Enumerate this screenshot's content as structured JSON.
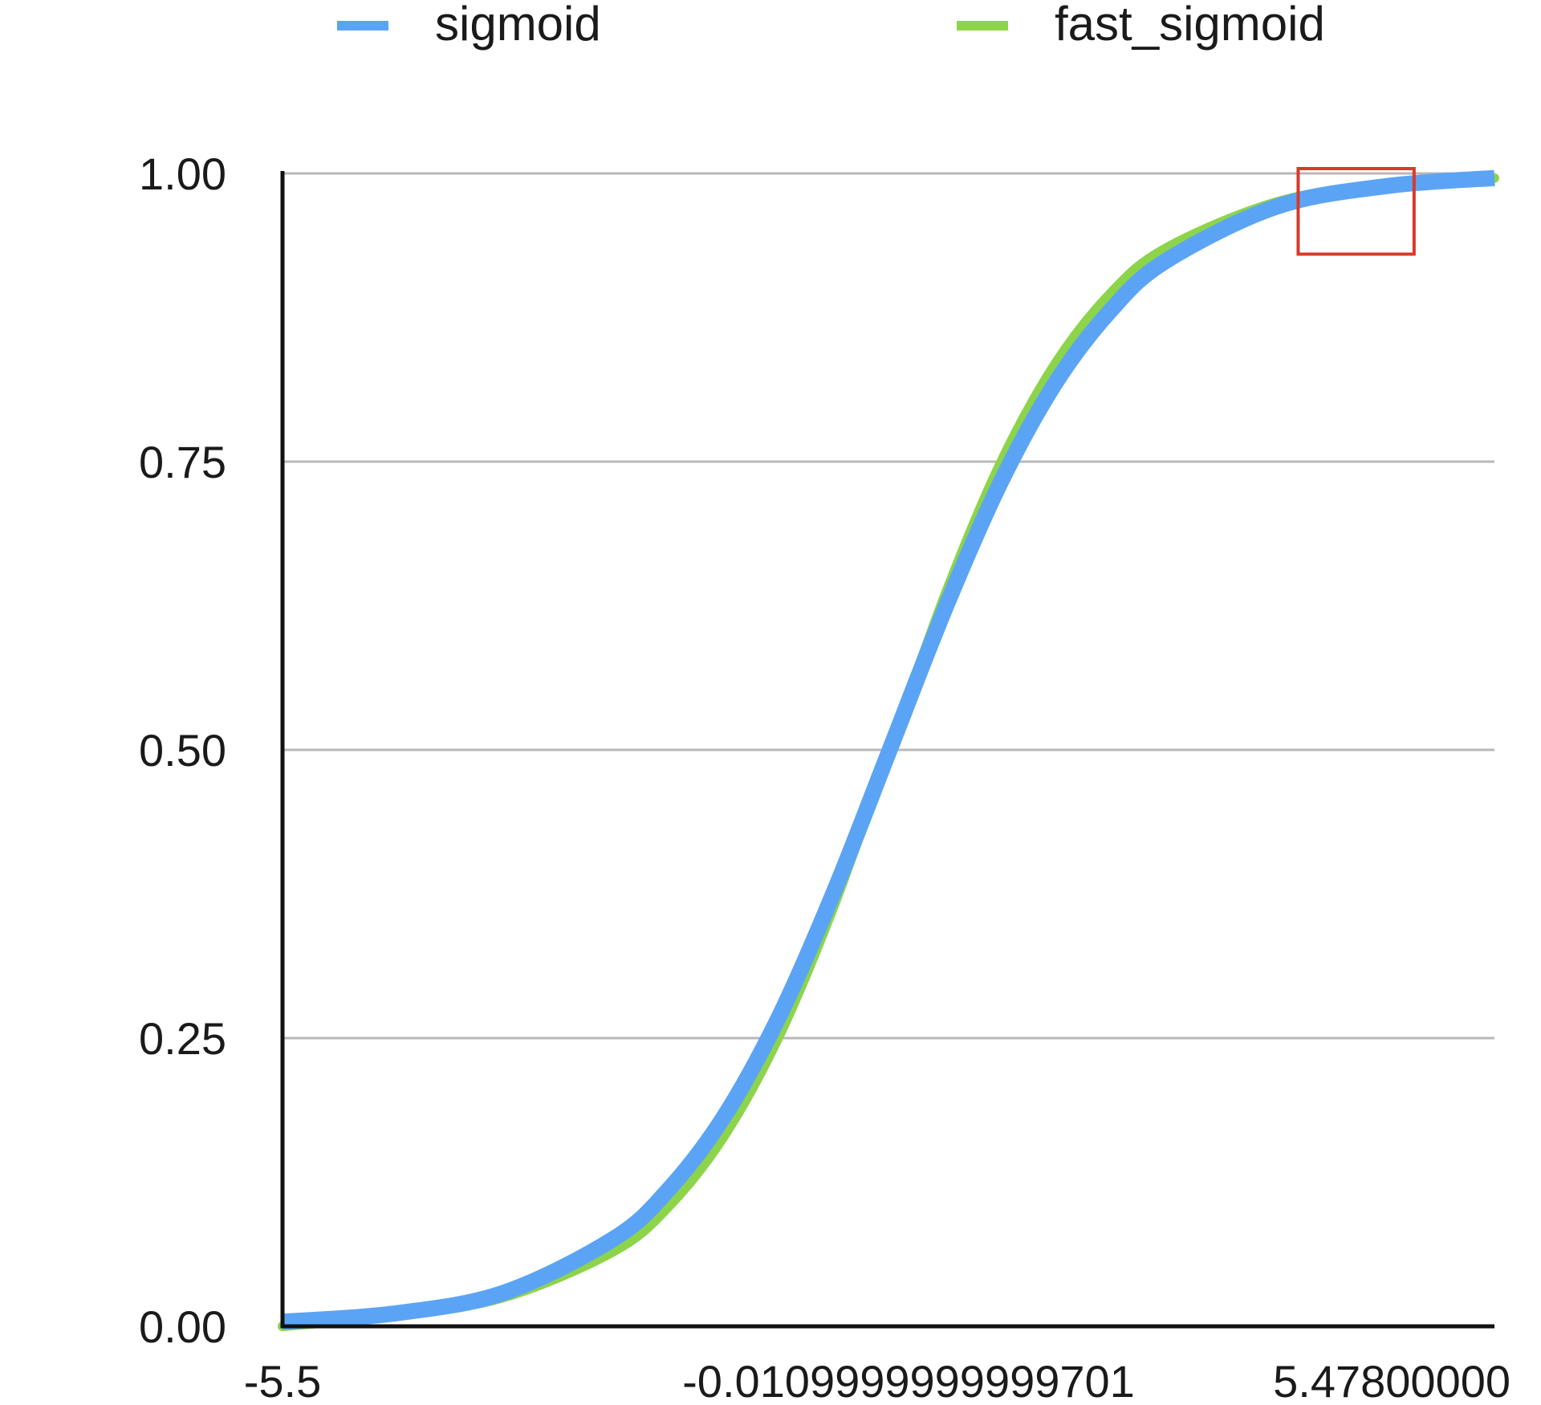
{
  "chart_data": {
    "type": "line",
    "title": "",
    "xlabel": "",
    "ylabel": "",
    "xlim": [
      -5.5,
      5.478
    ],
    "ylim": [
      0,
      1
    ],
    "grid": true,
    "legend_position": "top",
    "x_tick_labels": [
      "-5.5",
      "-0.0109999999999701",
      "5.47800000"
    ],
    "y_tick_labels": [
      "0.00",
      "0.25",
      "0.50",
      "0.75",
      "1.00"
    ],
    "y_ticks": [
      0,
      0.25,
      0.5,
      0.75,
      1.0
    ],
    "x": [
      -5.5,
      -4.5,
      -3.5,
      -2.5,
      -2.0,
      -1.5,
      -1.0,
      -0.5,
      0.0,
      0.5,
      1.0,
      1.5,
      2.0,
      2.5,
      3.5,
      4.5,
      5.478
    ],
    "series": [
      {
        "name": "sigmoid",
        "color": "#5ba4f5",
        "values": [
          0.004,
          0.011,
          0.029,
          0.076,
          0.119,
          0.182,
          0.269,
          0.378,
          0.5,
          0.622,
          0.731,
          0.818,
          0.881,
          0.924,
          0.971,
          0.989,
          0.996
        ]
      },
      {
        "name": "fast_sigmoid",
        "color": "#8dd44a",
        "values": [
          0.0,
          0.009,
          0.025,
          0.065,
          0.104,
          0.165,
          0.252,
          0.366,
          0.5,
          0.634,
          0.748,
          0.835,
          0.896,
          0.935,
          0.975,
          0.991,
          0.996
        ]
      }
    ],
    "annotations": [
      {
        "type": "highlight-box",
        "color": "#d83a2a",
        "x_range": [
          3.7,
          4.75
        ],
        "y_range": [
          0.93,
          1.0
        ]
      }
    ]
  }
}
